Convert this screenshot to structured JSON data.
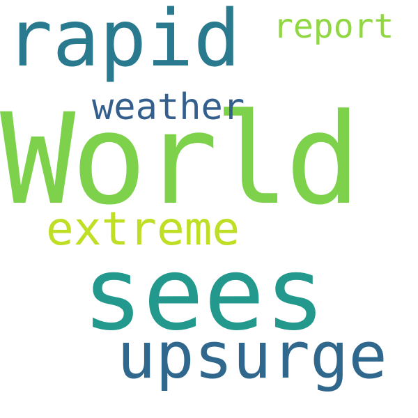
{
  "words": [
    {
      "text": "World",
      "color": "#7ed14b"
    },
    {
      "text": "sees",
      "color": "#22998c"
    },
    {
      "text": "rapid",
      "color": "#297a8e"
    },
    {
      "text": "upsurge",
      "color": "#30678d"
    },
    {
      "text": "extreme",
      "color": "#bedf26"
    },
    {
      "text": "weather",
      "color": "#345f8d"
    },
    {
      "text": "report",
      "color": "#90d743"
    }
  ]
}
